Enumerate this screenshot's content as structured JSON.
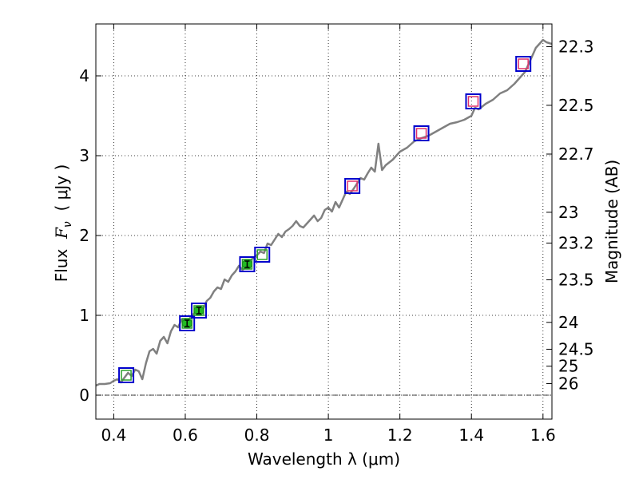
{
  "chart_data": {
    "type": "line",
    "xlabel": "Wavelength  λ (μm)",
    "ylabel": {
      "pre": "Flux  ",
      "var": "F",
      "sub": "ν",
      "post": "  ( μJy )"
    },
    "y2label": "Magnitude (AB)",
    "xlim": [
      0.35,
      1.625
    ],
    "ylim": [
      -0.3,
      4.65
    ],
    "grid": true,
    "x_ticks": [
      {
        "value": 0.4,
        "label": "0.4"
      },
      {
        "value": 0.6,
        "label": "0.6"
      },
      {
        "value": 0.8,
        "label": "0.8"
      },
      {
        "value": 1.0,
        "label": "1"
      },
      {
        "value": 1.2,
        "label": "1.2"
      },
      {
        "value": 1.4,
        "label": "1.4"
      },
      {
        "value": 1.6,
        "label": "1.6"
      }
    ],
    "y_ticks": [
      {
        "value": 0,
        "label": "0"
      },
      {
        "value": 1,
        "label": "1"
      },
      {
        "value": 2,
        "label": "2"
      },
      {
        "value": 3,
        "label": "3"
      },
      {
        "value": 4,
        "label": "4"
      }
    ],
    "y2_ticks": [
      {
        "mag": 22.3,
        "label": "22.3"
      },
      {
        "mag": 22.5,
        "label": "22.5"
      },
      {
        "mag": 22.7,
        "label": "22.7"
      },
      {
        "mag": 23,
        "label": "23"
      },
      {
        "mag": 23.2,
        "label": "23.2"
      },
      {
        "mag": 23.5,
        "label": "23.5"
      },
      {
        "mag": 24,
        "label": "24"
      },
      {
        "mag": 24.5,
        "label": "24.5"
      },
      {
        "mag": 25,
        "label": "25"
      },
      {
        "mag": 26,
        "label": "26"
      }
    ],
    "spectrum": {
      "color": "#808080",
      "x": [
        0.35,
        0.36,
        0.375,
        0.39,
        0.4,
        0.41,
        0.42,
        0.43,
        0.44,
        0.45,
        0.46,
        0.47,
        0.48,
        0.49,
        0.5,
        0.51,
        0.52,
        0.53,
        0.54,
        0.55,
        0.56,
        0.57,
        0.58,
        0.59,
        0.6,
        0.61,
        0.62,
        0.63,
        0.64,
        0.65,
        0.66,
        0.67,
        0.68,
        0.69,
        0.7,
        0.71,
        0.72,
        0.73,
        0.74,
        0.75,
        0.76,
        0.77,
        0.78,
        0.79,
        0.8,
        0.81,
        0.82,
        0.83,
        0.84,
        0.85,
        0.86,
        0.87,
        0.88,
        0.89,
        0.9,
        0.91,
        0.92,
        0.93,
        0.94,
        0.95,
        0.96,
        0.97,
        0.98,
        0.99,
        1.0,
        1.01,
        1.02,
        1.03,
        1.04,
        1.05,
        1.06,
        1.07,
        1.08,
        1.09,
        1.1,
        1.11,
        1.12,
        1.13,
        1.14,
        1.15,
        1.16,
        1.18,
        1.2,
        1.22,
        1.24,
        1.26,
        1.28,
        1.3,
        1.32,
        1.34,
        1.36,
        1.38,
        1.4,
        1.41,
        1.42,
        1.44,
        1.46,
        1.48,
        1.5,
        1.52,
        1.54,
        1.55,
        1.56,
        1.57,
        1.58,
        1.59,
        1.6,
        1.61,
        1.625
      ],
      "y": [
        0.12,
        0.14,
        0.14,
        0.15,
        0.18,
        0.2,
        0.16,
        0.22,
        0.28,
        0.24,
        0.32,
        0.3,
        0.2,
        0.4,
        0.55,
        0.58,
        0.52,
        0.68,
        0.73,
        0.65,
        0.8,
        0.88,
        0.85,
        0.95,
        0.93,
        0.95,
        1.0,
        1.05,
        1.07,
        1.08,
        1.18,
        1.22,
        1.3,
        1.35,
        1.33,
        1.45,
        1.42,
        1.5,
        1.55,
        1.62,
        1.57,
        1.6,
        1.68,
        1.72,
        1.75,
        1.8,
        1.78,
        1.9,
        1.88,
        1.95,
        2.02,
        1.98,
        2.05,
        2.08,
        2.12,
        2.18,
        2.12,
        2.1,
        2.15,
        2.2,
        2.25,
        2.18,
        2.22,
        2.32,
        2.35,
        2.3,
        2.42,
        2.35,
        2.45,
        2.55,
        2.52,
        2.58,
        2.65,
        2.72,
        2.7,
        2.78,
        2.85,
        2.8,
        3.15,
        2.82,
        2.88,
        2.95,
        3.05,
        3.1,
        3.18,
        3.22,
        3.25,
        3.3,
        3.35,
        3.4,
        3.42,
        3.45,
        3.5,
        3.6,
        3.58,
        3.65,
        3.7,
        3.78,
        3.82,
        3.9,
        4.0,
        4.05,
        4.15,
        4.25,
        4.35,
        4.4,
        4.45,
        4.42,
        4.4
      ]
    },
    "photometry": [
      {
        "x": 0.435,
        "y": 0.25,
        "box": "#0000cc",
        "inner": "#2ca02c",
        "point": false
      },
      {
        "x": 0.605,
        "y": 0.9,
        "box": "#0000cc",
        "inner": "#2ca02c",
        "point": true
      },
      {
        "x": 0.638,
        "y": 1.06,
        "box": "#0000cc",
        "inner": "#2ca02c",
        "point": true
      },
      {
        "x": 0.773,
        "y": 1.64,
        "box": "#0000cc",
        "inner": "#2ca02c",
        "point": true
      },
      {
        "x": 0.815,
        "y": 1.76,
        "box": "#0000cc",
        "inner": "#2ca02c",
        "point": false
      },
      {
        "x": 1.067,
        "y": 2.62,
        "box": "#0000cc",
        "inner": "#e0306a",
        "point": false
      },
      {
        "x": 1.26,
        "y": 3.28,
        "box": "#0000cc",
        "inner": "#e0306a",
        "point": false
      },
      {
        "x": 1.405,
        "y": 3.68,
        "box": "#0000cc",
        "inner": "#e0306a",
        "point": false
      },
      {
        "x": 1.545,
        "y": 4.15,
        "box": "#0000cc",
        "inner": "#e0306a",
        "point": false
      }
    ],
    "colors": {
      "grid": "#000000",
      "point_fill": "#22bb22",
      "zero_line": "#000000"
    }
  }
}
